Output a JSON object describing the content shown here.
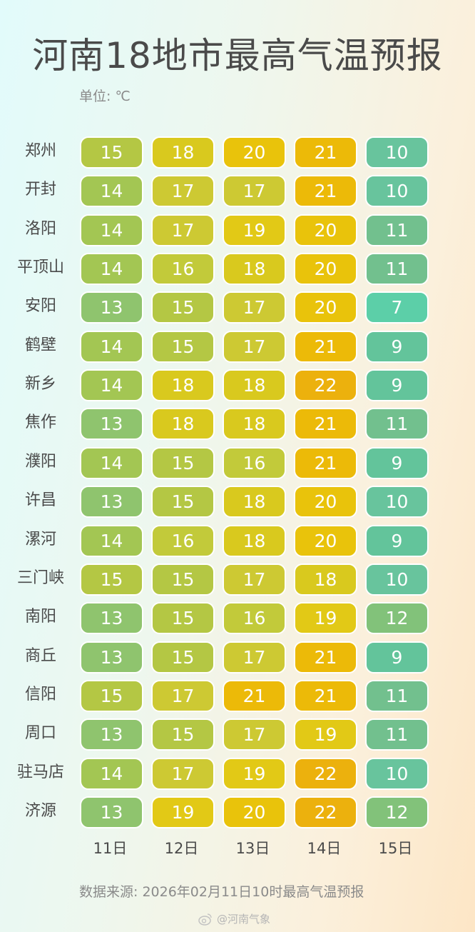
{
  "title": "河南18地市最高气温预报",
  "unit": "单位: ℃",
  "source": "数据来源: 2026年02月11日10时最高气温预报",
  "watermark": "@河南气象",
  "chart_data": {
    "type": "table",
    "columns": [
      "11日",
      "12日",
      "13日",
      "14日",
      "15日"
    ],
    "rows": [
      {
        "city": "郑州",
        "values": [
          15,
          18,
          20,
          21,
          10
        ]
      },
      {
        "city": "开封",
        "values": [
          14,
          17,
          17,
          21,
          10
        ]
      },
      {
        "city": "洛阳",
        "values": [
          14,
          17,
          19,
          20,
          11
        ]
      },
      {
        "city": "平顶山",
        "values": [
          14,
          16,
          18,
          20,
          11
        ]
      },
      {
        "city": "安阳",
        "values": [
          13,
          15,
          17,
          20,
          7
        ]
      },
      {
        "city": "鹤壁",
        "values": [
          14,
          15,
          17,
          21,
          9
        ]
      },
      {
        "city": "新乡",
        "values": [
          14,
          18,
          18,
          22,
          9
        ]
      },
      {
        "city": "焦作",
        "values": [
          13,
          18,
          18,
          21,
          11
        ]
      },
      {
        "city": "濮阳",
        "values": [
          14,
          15,
          16,
          21,
          9
        ]
      },
      {
        "city": "许昌",
        "values": [
          13,
          15,
          18,
          20,
          10
        ]
      },
      {
        "city": "漯河",
        "values": [
          14,
          16,
          18,
          20,
          9
        ]
      },
      {
        "city": "三门峡",
        "values": [
          15,
          15,
          17,
          18,
          10
        ]
      },
      {
        "city": "南阳",
        "values": [
          13,
          15,
          16,
          19,
          12
        ]
      },
      {
        "city": "商丘",
        "values": [
          13,
          15,
          17,
          21,
          9
        ]
      },
      {
        "city": "信阳",
        "values": [
          15,
          17,
          21,
          21,
          11
        ]
      },
      {
        "city": "周口",
        "values": [
          13,
          15,
          17,
          19,
          11
        ]
      },
      {
        "city": "驻马店",
        "values": [
          14,
          17,
          19,
          22,
          10
        ]
      },
      {
        "city": "济源",
        "values": [
          13,
          19,
          20,
          22,
          12
        ]
      }
    ],
    "color_scale": {
      "7": "#5ccfa8",
      "9": "#63c49b",
      "10": "#68c49d",
      "11": "#72c08e",
      "12": "#82c27a",
      "13": "#8fc46e",
      "14": "#a3c653",
      "15": "#b4c744",
      "16": "#c2ca3a",
      "17": "#cdc933",
      "18": "#d9c91e",
      "19": "#e2c916",
      "20": "#e9c30b",
      "21": "#ecba08",
      "22": "#ecb10d"
    }
  }
}
